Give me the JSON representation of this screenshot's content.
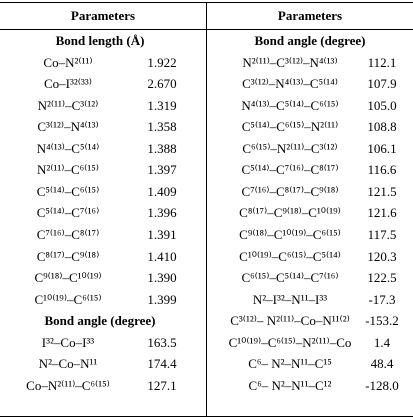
{
  "table": {
    "headers": [
      "Parameters",
      "Parameters"
    ],
    "left": [
      {
        "subheader": "Bond length (Å)",
        "rows": [
          [
            "Co–N²⁽¹¹⁾",
            "1.922"
          ],
          [
            "Co–I³²⁽³³⁾",
            "2.670"
          ],
          [
            "N²⁽¹¹⁾–C³⁽¹²⁾",
            "1.319"
          ],
          [
            "C³⁽¹²⁾–N⁴⁽¹³⁾",
            "1.358"
          ],
          [
            "N⁴⁽¹³⁾–C⁵⁽¹⁴⁾",
            "1.388"
          ],
          [
            "N²⁽¹¹⁾–C⁶⁽¹⁵⁾",
            "1.397"
          ],
          [
            "C⁵⁽¹⁴⁾–C⁶⁽¹⁵⁾",
            "1.409"
          ],
          [
            "C⁵⁽¹⁴⁾–C⁷⁽¹⁶⁾",
            "1.396"
          ],
          [
            "C⁷⁽¹⁶⁾–C⁸⁽¹⁷⁾",
            "1.391"
          ],
          [
            "C⁸⁽¹⁷⁾–C⁹⁽¹⁸⁾",
            "1.410"
          ],
          [
            "C⁹⁽¹⁸⁾–C¹⁰⁽¹⁹⁾",
            "1.390"
          ],
          [
            "C¹⁰⁽¹⁹⁾–C⁶⁽¹⁵⁾",
            "1.399"
          ]
        ]
      },
      {
        "subheader": "Bond angle (degree)",
        "rows": [
          [
            "I³²–Co–I³³",
            "163.5"
          ],
          [
            "N²–Co–N¹¹",
            "174.4"
          ],
          [
            "Co–N²⁽¹¹⁾–C⁶⁽¹⁵⁾",
            "127.1"
          ]
        ]
      }
    ],
    "right": [
      {
        "subheader": "Bond angle (degree)",
        "rows": [
          [
            "N²⁽¹¹⁾–C³⁽¹²⁾–N⁴⁽¹³⁾",
            "112.1"
          ],
          [
            "C³⁽¹²⁾–N⁴⁽¹³⁾–C⁵⁽¹⁴⁾",
            "107.9"
          ],
          [
            "N⁴⁽¹³⁾–C⁵⁽¹⁴⁾–C⁶⁽¹⁵⁾",
            "105.0"
          ],
          [
            "C⁵⁽¹⁴⁾–C⁶⁽¹⁵⁾–N²⁽¹¹⁾",
            "108.8"
          ],
          [
            "C⁶⁽¹⁵⁾–N²⁽¹¹⁾–C³⁽¹²⁾",
            "106.1"
          ],
          [
            "C⁵⁽¹⁴⁾–C⁷⁽¹⁶⁾–C⁸⁽¹⁷⁾",
            "116.6"
          ],
          [
            "C⁷⁽¹⁶⁾–C⁸⁽¹⁷⁾–C⁹⁽¹⁸⁾",
            "121.5"
          ],
          [
            "C⁸⁽¹⁷⁾–C⁹⁽¹⁸⁾–C¹⁰⁽¹⁹⁾",
            "121.6"
          ],
          [
            "C⁹⁽¹⁸⁾–C¹⁰⁽¹⁹⁾–C⁶⁽¹⁵⁾",
            "117.5"
          ],
          [
            "C¹⁰⁽¹⁹⁾–C⁶⁽¹⁵⁾–C⁵⁽¹⁴⁾",
            "120.3"
          ],
          [
            "C⁶⁽¹⁵⁾–C⁵⁽¹⁴⁾–C⁷⁽¹⁶⁾",
            "122.5"
          ],
          [
            "N²–I³²–N¹¹–I³³",
            "-17.3"
          ],
          [
            "C³⁽¹²⁾– N²⁽¹¹⁾–Co–N¹¹⁽²⁾",
            "-153.2"
          ],
          [
            "C¹⁰⁽¹⁹⁾–C⁶⁽¹⁵⁾–N²⁽¹¹⁾–Co",
            "1.4"
          ],
          [
            "C⁶– N²–N¹¹–C¹⁵",
            "48.4"
          ],
          [
            "C⁶– N²–N¹¹–C¹²",
            "-128.0"
          ]
        ]
      }
    ]
  }
}
